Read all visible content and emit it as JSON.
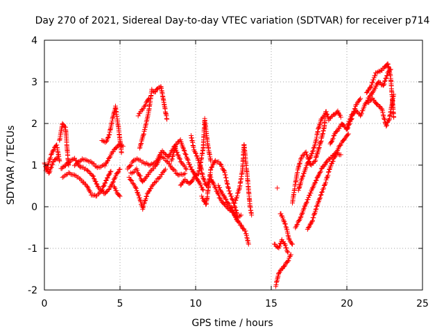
{
  "chart_data": {
    "type": "scatter",
    "title": "Day 270 of 2021, Sidereal Day-to-day VTEC variation (SDTVAR) for receiver p714",
    "xlabel": "GPS time / hours",
    "ylabel": "SDTVAR / TECUs",
    "xlim": [
      0,
      25
    ],
    "ylim": [
      -2,
      4
    ],
    "xticks": [
      0,
      5,
      10,
      15,
      20,
      25
    ],
    "yticks": [
      -2,
      -1,
      0,
      1,
      2,
      3,
      4
    ],
    "xtick_labels": [
      "0",
      "5",
      "10",
      "15",
      "20",
      "25"
    ],
    "ytick_labels": [
      "-2",
      "-1",
      "0",
      "1",
      "2",
      "3",
      "4"
    ],
    "grid": true,
    "marker": "+",
    "series": [
      {
        "name": "SDTVAR",
        "color": "#ff0000",
        "tracks": [
          [
            [
              0.0,
              1.05
            ],
            [
              0.3,
              0.8
            ],
            [
              0.6,
              1.1
            ],
            [
              0.9,
              1.2
            ]
          ],
          [
            [
              0.1,
              0.85
            ],
            [
              0.5,
              1.3
            ],
            [
              0.8,
              1.5
            ],
            [
              1.0,
              1.1
            ]
          ],
          [
            [
              1.0,
              1.6
            ],
            [
              1.2,
              2.0
            ],
            [
              1.4,
              1.9
            ],
            [
              1.5,
              1.4
            ],
            [
              1.6,
              1.0
            ]
          ],
          [
            [
              1.1,
              0.9
            ],
            [
              1.4,
              1.0
            ],
            [
              1.7,
              1.1
            ],
            [
              2.0,
              1.15
            ],
            [
              2.4,
              0.95
            ],
            [
              2.8,
              0.9
            ],
            [
              3.2,
              0.75
            ],
            [
              3.6,
              0.45
            ],
            [
              4.0,
              0.3
            ],
            [
              4.4,
              0.5
            ],
            [
              4.8,
              0.8
            ],
            [
              5.0,
              0.9
            ]
          ],
          [
            [
              1.2,
              0.7
            ],
            [
              1.6,
              0.8
            ],
            [
              2.0,
              0.75
            ],
            [
              2.4,
              0.65
            ],
            [
              2.8,
              0.5
            ],
            [
              3.1,
              0.3
            ],
            [
              3.4,
              0.25
            ],
            [
              3.8,
              0.4
            ],
            [
              4.1,
              0.65
            ],
            [
              4.4,
              0.85
            ]
          ],
          [
            [
              2.0,
              1.0
            ],
            [
              2.5,
              1.15
            ],
            [
              3.0,
              1.1
            ],
            [
              3.5,
              0.95
            ],
            [
              4.0,
              1.0
            ],
            [
              4.5,
              1.3
            ],
            [
              4.9,
              1.5
            ],
            [
              5.2,
              1.45
            ]
          ],
          [
            [
              3.8,
              1.6
            ],
            [
              4.1,
              1.55
            ],
            [
              4.3,
              1.75
            ],
            [
              4.5,
              2.1
            ],
            [
              4.7,
              2.4
            ],
            [
              4.9,
              1.9
            ],
            [
              5.1,
              1.3
            ]
          ],
          [
            [
              4.6,
              0.5
            ],
            [
              4.8,
              0.35
            ],
            [
              5.0,
              0.25
            ]
          ],
          [
            [
              5.5,
              0.9
            ],
            [
              5.9,
              1.1
            ],
            [
              6.2,
              1.15
            ],
            [
              6.6,
              1.05
            ],
            [
              7.0,
              1.0
            ],
            [
              7.4,
              1.1
            ],
            [
              7.8,
              1.35
            ],
            [
              8.2,
              1.2
            ],
            [
              8.6,
              1.45
            ],
            [
              9.0,
              1.1
            ],
            [
              9.4,
              0.9
            ]
          ],
          [
            [
              5.6,
              0.7
            ],
            [
              6.0,
              0.5
            ],
            [
              6.3,
              0.2
            ],
            [
              6.5,
              -0.05
            ],
            [
              6.8,
              0.3
            ],
            [
              7.2,
              0.55
            ],
            [
              7.6,
              0.7
            ],
            [
              8.0,
              0.9
            ]
          ],
          [
            [
              5.7,
              0.8
            ],
            [
              6.1,
              0.9
            ],
            [
              6.5,
              0.6
            ],
            [
              6.9,
              0.8
            ],
            [
              7.3,
              0.95
            ],
            [
              7.7,
              1.2
            ],
            [
              8.1,
              1.1
            ],
            [
              8.5,
              0.9
            ],
            [
              8.9,
              0.75
            ],
            [
              9.3,
              0.8
            ]
          ],
          [
            [
              6.3,
              1.4
            ],
            [
              6.6,
              1.8
            ],
            [
              6.9,
              2.3
            ],
            [
              7.1,
              2.8
            ],
            [
              7.3,
              2.75
            ],
            [
              7.5,
              2.85
            ],
            [
              7.7,
              2.9
            ],
            [
              7.9,
              2.5
            ],
            [
              8.1,
              2.1
            ]
          ],
          [
            [
              6.2,
              2.2
            ],
            [
              6.6,
              2.4
            ],
            [
              6.9,
              2.6
            ]
          ],
          [
            [
              8.4,
              1.1
            ],
            [
              8.7,
              1.5
            ],
            [
              9.0,
              1.6
            ],
            [
              9.3,
              1.3
            ],
            [
              9.6,
              1.0
            ],
            [
              9.9,
              0.8
            ],
            [
              10.2,
              0.6
            ],
            [
              10.5,
              0.4
            ]
          ],
          [
            [
              9.0,
              0.5
            ],
            [
              9.3,
              0.65
            ],
            [
              9.6,
              0.55
            ],
            [
              9.9,
              0.7
            ],
            [
              10.2,
              0.8
            ],
            [
              10.5,
              1.4
            ],
            [
              10.6,
              2.1
            ],
            [
              10.8,
              1.5
            ],
            [
              11.0,
              1.1
            ]
          ],
          [
            [
              9.7,
              1.7
            ],
            [
              9.9,
              1.35
            ],
            [
              10.1,
              1.2
            ],
            [
              10.3,
              1.0
            ],
            [
              10.5,
              0.7
            ],
            [
              10.7,
              0.5
            ],
            [
              10.9,
              0.6
            ]
          ],
          [
            [
              10.4,
              0.25
            ],
            [
              10.7,
              0.05
            ],
            [
              11.0,
              0.9
            ],
            [
              11.3,
              1.1
            ],
            [
              11.6,
              1.05
            ],
            [
              11.9,
              0.85
            ],
            [
              12.2,
              0.4
            ],
            [
              12.5,
              0.1
            ],
            [
              12.8,
              -0.25
            ],
            [
              13.0,
              -0.2
            ]
          ],
          [
            [
              11.0,
              0.7
            ],
            [
              11.3,
              0.45
            ],
            [
              11.6,
              0.2
            ],
            [
              11.9,
              0.05
            ],
            [
              12.2,
              -0.05
            ],
            [
              12.5,
              -0.15
            ],
            [
              12.8,
              -0.35
            ]
          ],
          [
            [
              11.5,
              0.5
            ],
            [
              11.8,
              0.3
            ],
            [
              12.1,
              0.1
            ],
            [
              12.4,
              -0.05
            ],
            [
              12.7,
              -0.3
            ],
            [
              13.0,
              -0.45
            ],
            [
              13.3,
              -0.6
            ],
            [
              13.5,
              -0.9
            ]
          ],
          [
            [
              12.6,
              0.1
            ],
            [
              12.9,
              0.45
            ],
            [
              13.1,
              0.9
            ],
            [
              13.2,
              1.5
            ],
            [
              13.4,
              0.8
            ],
            [
              13.6,
              0.0
            ],
            [
              13.7,
              -0.2
            ]
          ],
          [
            [
              15.2,
              -0.9
            ],
            [
              15.5,
              -1.0
            ],
            [
              15.7,
              -0.8
            ],
            [
              15.9,
              -0.9
            ],
            [
              16.1,
              -1.1
            ]
          ],
          [
            [
              15.3,
              -1.9
            ],
            [
              15.5,
              -1.6
            ],
            [
              15.7,
              -1.5
            ],
            [
              15.9,
              -1.4
            ],
            [
              16.1,
              -1.3
            ],
            [
              16.3,
              -1.15
            ]
          ],
          [
            [
              15.4,
              0.45
            ]
          ],
          [
            [
              15.6,
              -0.15
            ],
            [
              15.8,
              -0.3
            ],
            [
              16.0,
              -0.5
            ],
            [
              16.2,
              -0.8
            ],
            [
              16.4,
              -0.9
            ]
          ],
          [
            [
              16.4,
              0.1
            ],
            [
              16.7,
              0.8
            ],
            [
              17.0,
              1.2
            ],
            [
              17.3,
              1.3
            ],
            [
              17.6,
              1.0
            ],
            [
              17.9,
              1.1
            ],
            [
              18.1,
              1.35
            ],
            [
              18.3,
              1.6
            ],
            [
              18.5,
              1.9
            ],
            [
              18.6,
              2.3
            ],
            [
              18.8,
              2.1
            ],
            [
              19.1,
              2.2
            ],
            [
              19.4,
              2.3
            ],
            [
              19.6,
              2.15
            ]
          ],
          [
            [
              16.8,
              0.4
            ],
            [
              17.0,
              0.65
            ],
            [
              17.3,
              0.95
            ],
            [
              17.6,
              1.2
            ],
            [
              17.9,
              1.5
            ],
            [
              18.1,
              1.85
            ],
            [
              18.3,
              2.1
            ],
            [
              18.5,
              2.2
            ]
          ],
          [
            [
              16.6,
              -0.5
            ],
            [
              16.9,
              -0.3
            ],
            [
              17.2,
              0.0
            ],
            [
              17.5,
              0.25
            ],
            [
              17.8,
              0.5
            ],
            [
              18.1,
              0.75
            ],
            [
              18.4,
              0.95
            ],
            [
              18.7,
              1.1
            ],
            [
              19.0,
              1.2
            ],
            [
              19.3,
              1.3
            ],
            [
              19.6,
              1.25
            ]
          ],
          [
            [
              17.4,
              -0.55
            ],
            [
              17.7,
              -0.35
            ],
            [
              18.0,
              0.0
            ],
            [
              18.3,
              0.3
            ],
            [
              18.6,
              0.6
            ],
            [
              18.9,
              0.95
            ],
            [
              19.2,
              1.2
            ],
            [
              19.5,
              1.45
            ],
            [
              19.8,
              1.6
            ],
            [
              20.1,
              1.75
            ]
          ],
          [
            [
              18.9,
              1.5
            ],
            [
              19.2,
              1.75
            ],
            [
              19.5,
              1.9
            ],
            [
              19.7,
              2.0
            ],
            [
              20.0,
              1.85
            ],
            [
              20.3,
              2.1
            ],
            [
              20.6,
              2.45
            ],
            [
              20.9,
              2.6
            ]
          ],
          [
            [
              20.0,
              1.9
            ],
            [
              20.3,
              2.2
            ],
            [
              20.6,
              2.3
            ],
            [
              20.9,
              2.2
            ],
            [
              21.2,
              2.45
            ],
            [
              21.5,
              2.65
            ],
            [
              21.8,
              2.8
            ],
            [
              22.1,
              3.0
            ],
            [
              22.4,
              2.9
            ],
            [
              22.7,
              3.2
            ],
            [
              22.9,
              3.3
            ]
          ],
          [
            [
              21.3,
              2.75
            ],
            [
              21.6,
              2.9
            ],
            [
              21.9,
              3.2
            ],
            [
              22.2,
              3.25
            ],
            [
              22.5,
              3.35
            ],
            [
              22.7,
              3.45
            ],
            [
              22.9,
              3.1
            ],
            [
              23.0,
              2.6
            ],
            [
              23.1,
              2.15
            ]
          ],
          [
            [
              21.4,
              2.5
            ],
            [
              21.7,
              2.6
            ],
            [
              22.0,
              2.45
            ],
            [
              22.3,
              2.35
            ],
            [
              22.6,
              1.95
            ],
            [
              22.8,
              2.1
            ],
            [
              23.0,
              2.5
            ],
            [
              23.1,
              2.7
            ]
          ]
        ]
      }
    ]
  }
}
